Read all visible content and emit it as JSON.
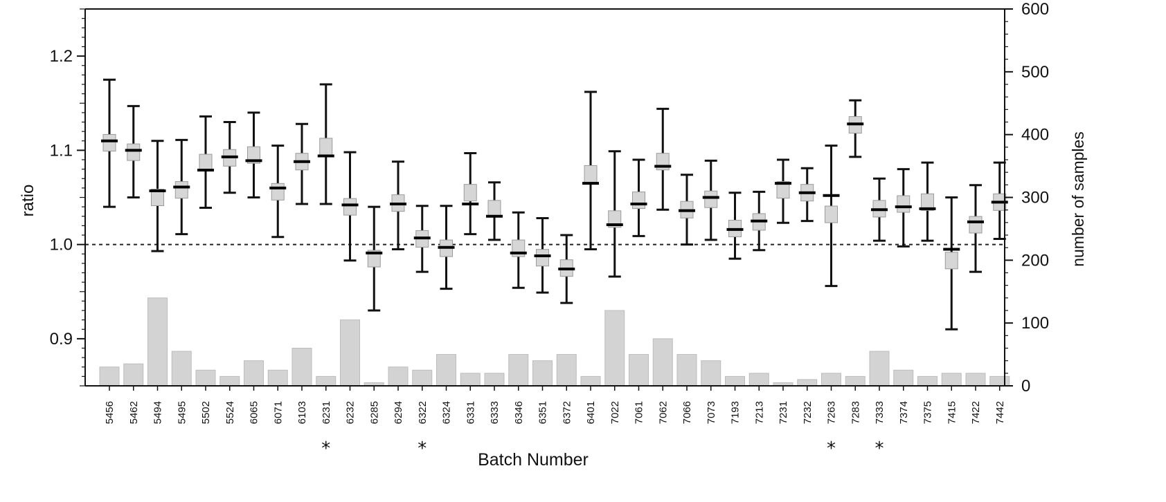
{
  "chart_data": {
    "type": "errorbar_with_bars",
    "xlabel": "Batch Number",
    "ylabel_left": "ratio",
    "ylabel_right": "number of samples",
    "ylim_left": [
      0.85,
      1.25
    ],
    "yticks_left": [
      "0.9",
      "1.0",
      "1.1",
      "1.2"
    ],
    "ylim_right": [
      0,
      600
    ],
    "yticks_right": [
      "0",
      "100",
      "200",
      "300",
      "400",
      "500",
      "600"
    ],
    "reference_line": 1.0,
    "marker": "*",
    "categories": [
      "5456",
      "5462",
      "5494",
      "5495",
      "5502",
      "5524",
      "6065",
      "6071",
      "6103",
      "6231",
      "6232",
      "6285",
      "6294",
      "6322",
      "6324",
      "6331",
      "6333",
      "6346",
      "6351",
      "6372",
      "6401",
      "7022",
      "7061",
      "7062",
      "7066",
      "7073",
      "7193",
      "7213",
      "7231",
      "7232",
      "7263",
      "7283",
      "7333",
      "7374",
      "7375",
      "7415",
      "7422",
      "7442"
    ],
    "starred": [
      false,
      false,
      false,
      false,
      false,
      false,
      false,
      false,
      false,
      true,
      false,
      false,
      false,
      true,
      false,
      false,
      false,
      false,
      false,
      false,
      false,
      false,
      false,
      false,
      false,
      false,
      false,
      false,
      false,
      false,
      true,
      false,
      true,
      false,
      false,
      false,
      false,
      false
    ],
    "series": [
      {
        "name": "ratio",
        "mean": [
          1.11,
          1.1,
          1.057,
          1.061,
          1.079,
          1.093,
          1.089,
          1.06,
          1.088,
          1.094,
          1.042,
          0.991,
          1.043,
          1.007,
          0.997,
          1.043,
          1.03,
          0.991,
          0.988,
          0.974,
          1.065,
          1.021,
          1.043,
          1.083,
          1.036,
          1.05,
          1.016,
          1.025,
          1.065,
          1.055,
          1.052,
          1.128,
          1.037,
          1.04,
          1.038,
          0.995,
          1.024,
          1.045
        ],
        "median": [
          1.108,
          1.098,
          1.05,
          1.058,
          1.087,
          1.092,
          1.095,
          1.056,
          1.088,
          1.104,
          1.04,
          0.985,
          1.044,
          1.006,
          0.996,
          1.055,
          1.038,
          0.996,
          0.986,
          0.975,
          1.075,
          1.027,
          1.047,
          1.088,
          1.037,
          1.048,
          1.017,
          1.024,
          1.058,
          1.055,
          1.032,
          1.127,
          1.038,
          1.043,
          1.045,
          0.983,
          1.021,
          1.045
        ],
        "upper": [
          1.175,
          1.147,
          1.11,
          1.111,
          1.136,
          1.13,
          1.14,
          1.105,
          1.128,
          1.17,
          1.098,
          1.04,
          1.088,
          1.041,
          1.041,
          1.097,
          1.066,
          1.034,
          1.028,
          1.01,
          1.162,
          1.099,
          1.09,
          1.144,
          1.074,
          1.089,
          1.055,
          1.056,
          1.09,
          1.081,
          1.105,
          1.153,
          1.07,
          1.08,
          1.087,
          1.05,
          1.063,
          1.087
        ],
        "lower": [
          1.04,
          1.05,
          0.993,
          1.011,
          1.039,
          1.055,
          1.05,
          1.008,
          1.043,
          1.043,
          0.983,
          0.93,
          0.995,
          0.971,
          0.953,
          1.011,
          1.005,
          0.954,
          0.949,
          0.938,
          0.995,
          0.966,
          1.009,
          1.037,
          1.0,
          1.005,
          0.985,
          0.994,
          1.023,
          1.025,
          0.956,
          1.093,
          1.004,
          0.998,
          1.004,
          0.91,
          0.971,
          1.006
        ]
      },
      {
        "name": "number of samples",
        "values": [
          30,
          35,
          140,
          55,
          25,
          15,
          40,
          25,
          60,
          15,
          105,
          5,
          30,
          25,
          50,
          20,
          20,
          50,
          40,
          50,
          15,
          120,
          50,
          75,
          50,
          40,
          15,
          20,
          5,
          10,
          20,
          15,
          55,
          25,
          15,
          20,
          20,
          15
        ]
      }
    ]
  }
}
